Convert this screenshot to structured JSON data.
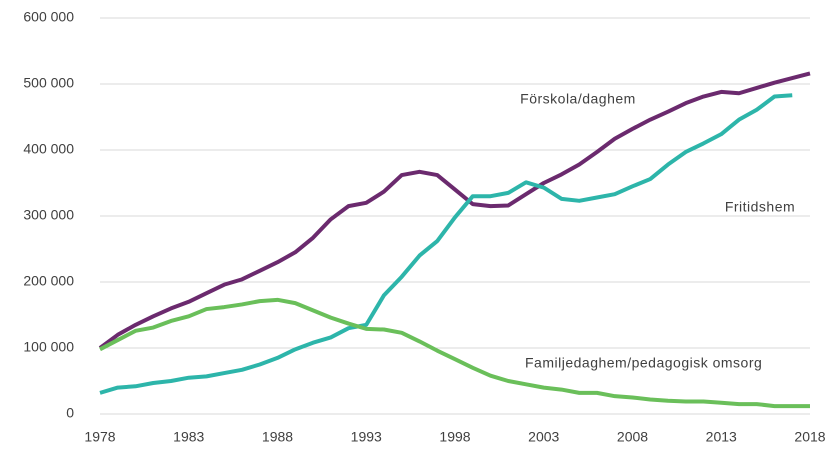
{
  "chart_data": {
    "type": "line",
    "x": [
      1978,
      1979,
      1980,
      1981,
      1982,
      1983,
      1984,
      1985,
      1986,
      1987,
      1988,
      1989,
      1990,
      1991,
      1992,
      1993,
      1994,
      1995,
      1996,
      1997,
      1998,
      1999,
      2000,
      2001,
      2002,
      2003,
      2004,
      2005,
      2006,
      2007,
      2008,
      2009,
      2010,
      2011,
      2012,
      2013,
      2014,
      2015,
      2016,
      2017,
      2018
    ],
    "series": [
      {
        "name": "Förskola/daghem",
        "color": "#6b2a6e",
        "values": [
          100000,
          120000,
          135000,
          148000,
          160000,
          170000,
          183000,
          196000,
          204000,
          217000,
          230000,
          245000,
          267000,
          295000,
          315000,
          320000,
          337000,
          362000,
          367000,
          362000,
          340000,
          318000,
          315000,
          316000,
          333000,
          350000,
          363000,
          378000,
          397000,
          417000,
          432000,
          446000,
          458000,
          471000,
          481000,
          488000,
          486000,
          494000,
          502000,
          509000,
          516000
        ]
      },
      {
        "name": "Fritidshem",
        "color": "#2db5aa",
        "values": [
          32000,
          40000,
          42000,
          47000,
          50000,
          55000,
          57000,
          62000,
          67000,
          75000,
          85000,
          98000,
          108000,
          116000,
          130000,
          135000,
          180000,
          208000,
          240000,
          262000,
          298000,
          330000,
          330000,
          335000,
          351000,
          343000,
          326000,
          323000,
          328000,
          333000,
          345000,
          356000,
          378000,
          397000,
          410000,
          424000,
          446000,
          461000,
          481000,
          483000,
          null
        ]
      },
      {
        "name": "Familjedaghem/pedagogisk omsorg",
        "color": "#6abf5a",
        "values": [
          98000,
          112000,
          126000,
          131000,
          141000,
          148000,
          159000,
          162000,
          166000,
          171000,
          173000,
          168000,
          157000,
          146000,
          137000,
          129000,
          128000,
          123000,
          110000,
          96000,
          83000,
          70000,
          58000,
          50000,
          45000,
          40000,
          37000,
          32000,
          32000,
          27000,
          25000,
          22000,
          20000,
          19000,
          19000,
          17000,
          15000,
          15000,
          12000,
          12000,
          12000
        ]
      }
    ],
    "xlim": [
      1978,
      2018
    ],
    "xticks": [
      1978,
      1983,
      1988,
      1993,
      1998,
      2003,
      2008,
      2013,
      2018
    ],
    "ylim": [
      0,
      600000
    ],
    "yticks": [
      0,
      {
        "value": 100000,
        "label": "100 000"
      },
      {
        "value": 200000,
        "label": "200 000"
      },
      {
        "value": 300000,
        "label": "300 000"
      },
      {
        "value": 400000,
        "label": "400 000"
      },
      {
        "value": 500000,
        "label": "500 000"
      },
      {
        "value": 600000,
        "label": "600 000"
      }
    ],
    "grid": true
  }
}
